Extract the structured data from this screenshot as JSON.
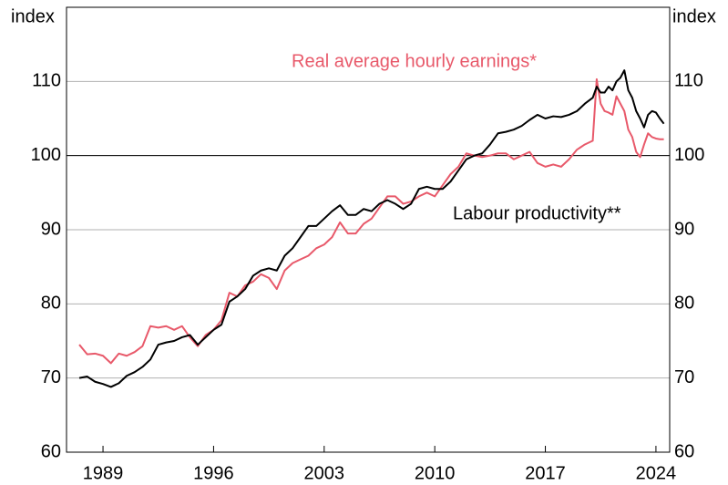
{
  "chart_data": {
    "type": "line",
    "y_label": "index",
    "y2_label": "index",
    "annotations": [
      "Real average hourly earnings*",
      "Labour productivity**"
    ],
    "x": [
      1987.5,
      1988,
      1988.5,
      1989,
      1989.5,
      1990,
      1990.5,
      1991,
      1991.5,
      1992,
      1992.5,
      1993,
      1993.5,
      1994,
      1994.5,
      1995,
      1995.5,
      1996,
      1996.5,
      1997,
      1997.5,
      1998,
      1998.5,
      1999,
      1999.5,
      2000,
      2000.5,
      2001,
      2001.5,
      2002,
      2002.5,
      2003,
      2003.5,
      2004,
      2004.5,
      2005,
      2005.5,
      2006,
      2006.5,
      2007,
      2007.5,
      2008,
      2008.5,
      2009,
      2009.5,
      2010,
      2010.5,
      2011,
      2011.5,
      2012,
      2012.5,
      2013,
      2013.5,
      2014,
      2014.5,
      2015,
      2015.5,
      2016,
      2016.5,
      2017,
      2017.5,
      2018,
      2018.5,
      2019,
      2019.5,
      2020,
      2020.25,
      2020.5,
      2020.75,
      2021,
      2021.25,
      2021.5,
      2021.75,
      2022,
      2022.25,
      2022.5,
      2022.75,
      2023,
      2023.25,
      2023.5,
      2023.75,
      2024,
      2024.25,
      2024.5
    ],
    "series": [
      {
        "name": "Real average hourly earnings*",
        "color": "#e8596a",
        "values": [
          74.5,
          73.2,
          73.3,
          73.0,
          72.0,
          73.3,
          73.0,
          73.5,
          74.3,
          77.0,
          76.8,
          77.0,
          76.5,
          77.0,
          75.5,
          74.3,
          75.8,
          76.5,
          77.8,
          81.5,
          81.0,
          82.5,
          83.0,
          84.0,
          83.5,
          82.0,
          84.5,
          85.5,
          86.0,
          86.5,
          87.5,
          88.0,
          89.0,
          91.0,
          89.5,
          89.5,
          90.8,
          91.5,
          93.0,
          94.5,
          94.5,
          93.5,
          93.8,
          94.5,
          95.0,
          94.5,
          96.0,
          97.5,
          98.5,
          100.3,
          100.0,
          99.8,
          100.0,
          100.3,
          100.3,
          99.5,
          100.0,
          100.5,
          99.0,
          98.5,
          98.8,
          98.5,
          99.5,
          100.8,
          101.5,
          102.0,
          110.3,
          107.0,
          106.0,
          105.8,
          105.5,
          108.0,
          107.0,
          106.0,
          103.5,
          102.5,
          100.5,
          99.8,
          101.5,
          103.0,
          102.5,
          102.3,
          102.2,
          102.2
        ]
      },
      {
        "name": "Labour productivity**",
        "color": "#000000",
        "values": [
          70.0,
          70.2,
          69.5,
          69.2,
          68.8,
          69.3,
          70.3,
          70.8,
          71.5,
          72.5,
          74.5,
          74.8,
          75.0,
          75.5,
          75.8,
          74.5,
          75.5,
          76.5,
          77.2,
          80.3,
          81.0,
          82.0,
          83.8,
          84.5,
          84.8,
          84.5,
          86.5,
          87.5,
          89.0,
          90.5,
          90.5,
          91.5,
          92.5,
          93.3,
          92.0,
          92.0,
          92.8,
          92.5,
          93.5,
          94.0,
          93.5,
          92.8,
          93.5,
          95.5,
          95.8,
          95.5,
          95.5,
          96.5,
          98.0,
          99.5,
          100.0,
          100.3,
          101.5,
          103.0,
          103.2,
          103.5,
          104.0,
          104.8,
          105.5,
          105.0,
          105.3,
          105.2,
          105.5,
          106.0,
          107.0,
          107.8,
          109.3,
          108.5,
          108.5,
          109.3,
          108.8,
          110.0,
          110.5,
          111.5,
          108.8,
          107.8,
          106.0,
          105.0,
          103.8,
          105.5,
          106.0,
          105.8,
          105.0,
          104.3
        ]
      }
    ],
    "xlim": [
      1986.69,
      2024.87
    ],
    "xticks": [
      1989,
      1996,
      2003,
      2010,
      2017,
      2024
    ],
    "ylim": [
      60,
      120
    ],
    "yticks": [
      60,
      70,
      80,
      90,
      100,
      110
    ],
    "reference_line": 100,
    "grid": true
  }
}
